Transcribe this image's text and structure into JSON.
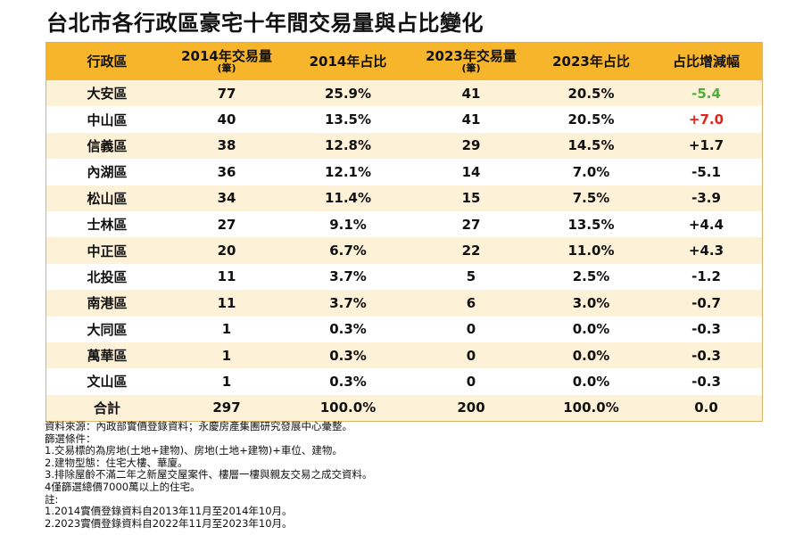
{
  "title": "台北市各行政區豪宅十年間交易量與占比變化",
  "table": {
    "headers": [
      {
        "label": "行政區",
        "unit": ""
      },
      {
        "label": "2014年交易量",
        "unit": "(筆)"
      },
      {
        "label": "2014年占比",
        "unit": ""
      },
      {
        "label": "2023年交易量",
        "unit": "(筆)"
      },
      {
        "label": "2023年占比",
        "unit": ""
      },
      {
        "label": "占比增減幅",
        "unit": ""
      }
    ],
    "rows": [
      {
        "district": "大安區",
        "vol2014": "77",
        "share2014": "25.9%",
        "vol2023": "41",
        "share2023": "20.5%",
        "change": "-5.4",
        "change_color": "green"
      },
      {
        "district": "中山區",
        "vol2014": "40",
        "share2014": "13.5%",
        "vol2023": "41",
        "share2023": "20.5%",
        "change": "+7.0",
        "change_color": "red"
      },
      {
        "district": "信義區",
        "vol2014": "38",
        "share2014": "12.8%",
        "vol2023": "29",
        "share2023": "14.5%",
        "change": "+1.7",
        "change_color": ""
      },
      {
        "district": "內湖區",
        "vol2014": "36",
        "share2014": "12.1%",
        "vol2023": "14",
        "share2023": "7.0%",
        "change": "-5.1",
        "change_color": ""
      },
      {
        "district": "松山區",
        "vol2014": "34",
        "share2014": "11.4%",
        "vol2023": "15",
        "share2023": "7.5%",
        "change": "-3.9",
        "change_color": ""
      },
      {
        "district": "士林區",
        "vol2014": "27",
        "share2014": "9.1%",
        "vol2023": "27",
        "share2023": "13.5%",
        "change": "+4.4",
        "change_color": ""
      },
      {
        "district": "中正區",
        "vol2014": "20",
        "share2014": "6.7%",
        "vol2023": "22",
        "share2023": "11.0%",
        "change": "+4.3",
        "change_color": ""
      },
      {
        "district": "北投區",
        "vol2014": "11",
        "share2014": "3.7%",
        "vol2023": "5",
        "share2023": "2.5%",
        "change": "-1.2",
        "change_color": ""
      },
      {
        "district": "南港區",
        "vol2014": "11",
        "share2014": "3.7%",
        "vol2023": "6",
        "share2023": "3.0%",
        "change": "-0.7",
        "change_color": ""
      },
      {
        "district": "大同區",
        "vol2014": "1",
        "share2014": "0.3%",
        "vol2023": "0",
        "share2023": "0.0%",
        "change": "-0.3",
        "change_color": ""
      },
      {
        "district": "萬華區",
        "vol2014": "1",
        "share2014": "0.3%",
        "vol2023": "0",
        "share2023": "0.0%",
        "change": "-0.3",
        "change_color": ""
      },
      {
        "district": "文山區",
        "vol2014": "1",
        "share2014": "0.3%",
        "vol2023": "0",
        "share2023": "0.0%",
        "change": "-0.3",
        "change_color": ""
      },
      {
        "district": "合計",
        "vol2014": "297",
        "share2014": "100.0%",
        "vol2023": "200",
        "share2023": "100.0%",
        "change": "0.0",
        "change_color": ""
      }
    ]
  },
  "colors": {
    "header_bg": "#f7b52c",
    "stripe_bg": "#fdf1d8",
    "negative_highlight": "#4caf3a",
    "positive_highlight": "#e0241b"
  },
  "notes": [
    "資料來源：內政部實價登錄資料；永慶房產集團研究發展中心彙整。",
    "篩選條件：",
    "1.交易標的為房地(土地+建物)、房地(土地+建物)+車位、建物。",
    "2.建物型態：住宅大樓、華廈。",
    "3.排除屋齡不滿二年之新屋交屋案件、樓層一樓與親友交易之成交資料。",
    "4僅篩選總價7000萬以上的住宅。",
    "註:",
    "1.2014實價登錄資料自2013年11月至2014年10月。",
    "2.2023實價登錄資料自2022年11月至2023年10月。"
  ]
}
